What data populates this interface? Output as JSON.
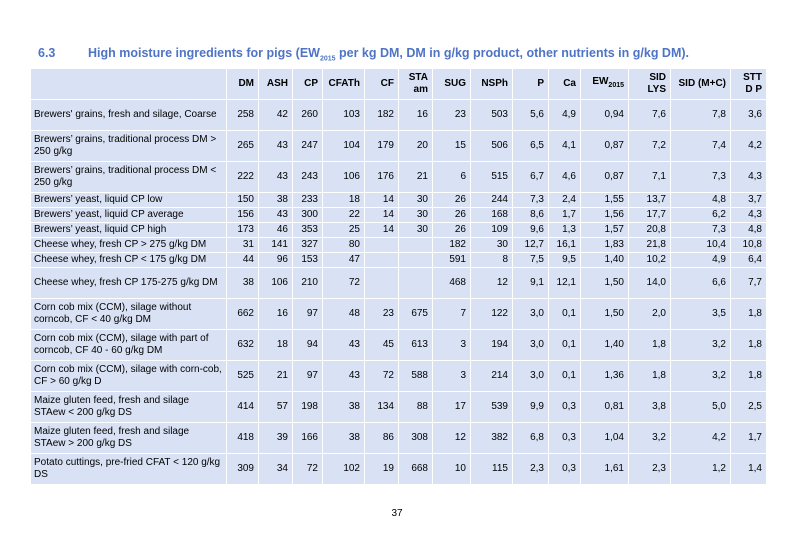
{
  "header": {
    "number": "6.3",
    "title": "High moisture ingredients for pigs (EW",
    "title_sub": "2015",
    "title_end": " per kg DM, DM in g/kg product, other nutrients in g/kg DM)."
  },
  "table": {
    "headers": [
      "DM",
      "ASH",
      "CP",
      "CFATh",
      "CF",
      [
        "STA",
        "am"
      ],
      "SUG",
      "NSPh",
      "P",
      "Ca",
      [
        "EW",
        "2015"
      ],
      [
        "SID",
        "LYS"
      ],
      "SID (M+C)",
      [
        "STT",
        "D P"
      ]
    ],
    "rows": [
      [
        "Brewers' grains, fresh and silage, Coarse",
        "258",
        "42",
        "260",
        "103",
        "182",
        "16",
        "23",
        "503",
        "5,6",
        "4,9",
        "0,94",
        "7,6",
        "7,8",
        "3,6"
      ],
      [
        "Brewers’ grains, traditional process DM > 250 g/kg",
        "265",
        "43",
        "247",
        "104",
        "179",
        "20",
        "15",
        "506",
        "6,5",
        "4,1",
        "0,87",
        "7,2",
        "7,4",
        "4,2"
      ],
      [
        "Brewers’ grains, traditional process DM < 250 g/kg",
        "222",
        "43",
        "243",
        "106",
        "176",
        "21",
        "6",
        "515",
        "6,7",
        "4,6",
        "0,87",
        "7,1",
        "7,3",
        "4,3"
      ],
      [
        "Brewers’ yeast, liquid CP low",
        "150",
        "38",
        "233",
        "18",
        "14",
        "30",
        "26",
        "244",
        "7,3",
        "2,4",
        "1,55",
        "13,7",
        "4,8",
        "3,7"
      ],
      [
        "Brewers’ yeast, liquid CP average",
        "156",
        "43",
        "300",
        "22",
        "14",
        "30",
        "26",
        "168",
        "8,6",
        "1,7",
        "1,56",
        "17,7",
        "6,2",
        "4,3"
      ],
      [
        "Brewers’ yeast, liquid CP high",
        "173",
        "46",
        "353",
        "25",
        "14",
        "30",
        "26",
        "109",
        "9,6",
        "1,3",
        "1,57",
        "20,8",
        "7,3",
        "4,8"
      ],
      [
        "Cheese whey, fresh CP > 275 g/kg DM",
        "31",
        "141",
        "327",
        "80",
        null,
        null,
        "182",
        "30",
        "12,7",
        "16,1",
        "1,83",
        "21,8",
        "10,4",
        "10,8"
      ],
      [
        "Cheese whey, fresh CP < 175 g/kg DM",
        "44",
        "96",
        "153",
        "47",
        null,
        null,
        "591",
        "8",
        "7,5",
        "9,5",
        "1,40",
        "10,2",
        "4,9",
        "6,4"
      ],
      [
        "Cheese whey, fresh CP 175-275 g/kg DM",
        "38",
        "106",
        "210",
        "72",
        null,
        null,
        "468",
        "12",
        "9,1",
        "12,1",
        "1,50",
        "14,0",
        "6,6",
        "7,7"
      ],
      [
        "Corn cob mix (CCM), silage without corncob, CF < 40 g/kg DM",
        "662",
        "16",
        "97",
        "48",
        "23",
        "675",
        "7",
        "122",
        "3,0",
        "0,1",
        "1,50",
        "2,0",
        "3,5",
        "1,8"
      ],
      [
        "Corn cob mix (CCM), silage with part of corncob, CF 40 - 60 g/kg DM",
        "632",
        "18",
        "94",
        "43",
        "45",
        "613",
        "3",
        "194",
        "3,0",
        "0,1",
        "1,40",
        "1,8",
        "3,2",
        "1,8"
      ],
      [
        "Corn cob mix (CCM), silage with corn-cob, CF > 60 g/kg D",
        "525",
        "21",
        "97",
        "43",
        "72",
        "588",
        "3",
        "214",
        "3,0",
        "0,1",
        "1,36",
        "1,8",
        "3,2",
        "1,8"
      ],
      [
        "Maize gluten feed, fresh and silage STAew < 200 g/kg DS",
        "414",
        "57",
        "198",
        "38",
        "134",
        "88",
        "17",
        "539",
        "9,9",
        "0,3",
        "0,81",
        "3,8",
        "5,0",
        "2,5"
      ],
      [
        "Maize gluten feed, fresh and silage STAew > 200 g/kg DS",
        "418",
        "39",
        "166",
        "38",
        "86",
        "308",
        "12",
        "382",
        "6,8",
        "0,3",
        "1,04",
        "3,2",
        "4,2",
        "1,7"
      ],
      [
        "Potato cuttings, pre-fried CFAT < 120 g/kg DS",
        "309",
        "34",
        "72",
        "102",
        "19",
        "668",
        "10",
        "115",
        "2,3",
        "0,3",
        "1,61",
        "2,3",
        "1,2",
        "1,4"
      ]
    ]
  },
  "footer": {
    "page": "37"
  }
}
